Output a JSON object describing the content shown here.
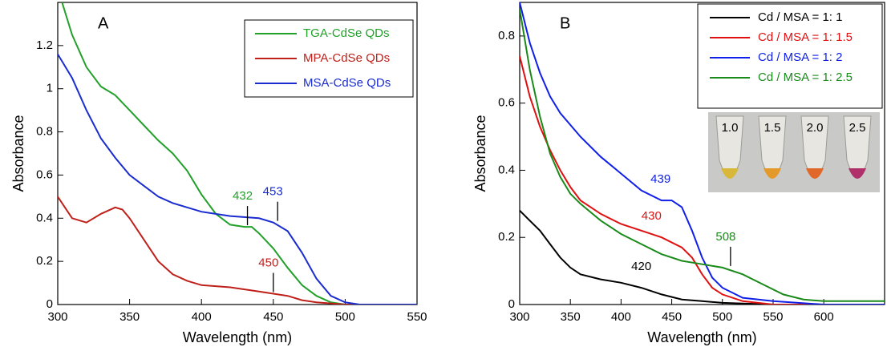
{
  "chart_data": [
    {
      "type": "line",
      "label": "A",
      "x_label": "Wavelength (nm)",
      "y_label": "Absorbance",
      "xlim": [
        300,
        550
      ],
      "ylim": [
        0,
        1.4
      ],
      "xticks": [
        300,
        350,
        400,
        450,
        500,
        550
      ],
      "yticks": [
        0,
        0.2,
        0.4,
        0.6,
        0.8,
        1,
        1.2
      ],
      "legend": "upper right",
      "series": [
        {
          "name": "TGA-CdSe QDs",
          "color": "#22a02a",
          "x": [
            303,
            310,
            320,
            330,
            340,
            350,
            360,
            370,
            380,
            390,
            400,
            410,
            420,
            430,
            435,
            440,
            450,
            460,
            470,
            480,
            490,
            500,
            550
          ],
          "values": [
            1.4,
            1.25,
            1.1,
            1.01,
            0.97,
            0.9,
            0.83,
            0.76,
            0.7,
            0.62,
            0.51,
            0.42,
            0.37,
            0.36,
            0.36,
            0.33,
            0.26,
            0.17,
            0.09,
            0.04,
            0.01,
            0,
            0
          ]
        },
        {
          "name": "MPA-CdSe QDs",
          "color": "#c0201a",
          "x": [
            300,
            310,
            320,
            330,
            340,
            345,
            350,
            360,
            370,
            380,
            390,
            400,
            420,
            440,
            450,
            460,
            470,
            480,
            500,
            550
          ],
          "values": [
            0.5,
            0.4,
            0.38,
            0.42,
            0.45,
            0.44,
            0.4,
            0.3,
            0.2,
            0.14,
            0.11,
            0.09,
            0.08,
            0.06,
            0.05,
            0.04,
            0.02,
            0.01,
            0,
            0
          ]
        },
        {
          "name": "MSA-CdSe QDs",
          "color": "#1a2ccf",
          "x": [
            300,
            310,
            320,
            330,
            340,
            350,
            360,
            370,
            380,
            390,
            400,
            420,
            440,
            450,
            460,
            470,
            480,
            490,
            500,
            510,
            550
          ],
          "values": [
            1.16,
            1.05,
            0.9,
            0.77,
            0.68,
            0.6,
            0.55,
            0.5,
            0.47,
            0.45,
            0.43,
            0.41,
            0.4,
            0.38,
            0.34,
            0.24,
            0.12,
            0.04,
            0.01,
            0,
            0
          ]
        }
      ],
      "annotations": [
        {
          "x": 432,
          "y": 0.36,
          "color": "#22a02a",
          "pointer": true
        },
        {
          "x": 453,
          "y": 0.38,
          "color": "#1a2ccf",
          "pointer": true
        },
        {
          "x": 450,
          "y": 0.05,
          "color": "#c0201a",
          "pointer": true
        }
      ]
    },
    {
      "type": "line",
      "label": "B",
      "x_label": "Wavelength (nm)",
      "y_label": "Absorbance",
      "xlim": [
        300,
        660
      ],
      "ylim": [
        0,
        0.9
      ],
      "xticks": [
        300,
        350,
        400,
        450,
        500,
        550,
        600
      ],
      "yticks": [
        0,
        0.2,
        0.4,
        0.6,
        0.8
      ],
      "legend": "upper right",
      "series": [
        {
          "name": "Cd / MSA = 1: 1",
          "color": "#000000",
          "x": [
            300,
            310,
            320,
            330,
            340,
            350,
            360,
            380,
            400,
            420,
            440,
            460,
            480,
            500,
            550,
            660
          ],
          "values": [
            0.28,
            0.25,
            0.22,
            0.18,
            0.14,
            0.11,
            0.09,
            0.075,
            0.065,
            0.05,
            0.03,
            0.015,
            0.01,
            0.005,
            0,
            0
          ]
        },
        {
          "name": "Cd / MSA = 1: 1.5",
          "color": "#e01010",
          "x": [
            300,
            310,
            320,
            330,
            340,
            350,
            360,
            380,
            400,
            420,
            440,
            460,
            470,
            480,
            490,
            500,
            520,
            550,
            660
          ],
          "values": [
            0.74,
            0.62,
            0.53,
            0.46,
            0.4,
            0.35,
            0.31,
            0.27,
            0.24,
            0.22,
            0.2,
            0.17,
            0.14,
            0.09,
            0.05,
            0.03,
            0.01,
            0,
            0
          ]
        },
        {
          "name": "Cd / MSA = 1: 2",
          "color": "#1020e8",
          "x": [
            300,
            310,
            320,
            330,
            340,
            360,
            380,
            400,
            420,
            440,
            450,
            460,
            470,
            480,
            490,
            500,
            520,
            550,
            600,
            660
          ],
          "values": [
            0.9,
            0.78,
            0.69,
            0.62,
            0.57,
            0.5,
            0.44,
            0.39,
            0.34,
            0.31,
            0.31,
            0.29,
            0.22,
            0.14,
            0.08,
            0.05,
            0.02,
            0.01,
            0,
            0
          ]
        },
        {
          "name": "Cd / MSA = 1: 2.5",
          "color": "#1a8a1a",
          "x": [
            300,
            310,
            320,
            330,
            340,
            350,
            360,
            380,
            400,
            420,
            440,
            460,
            480,
            500,
            520,
            540,
            560,
            580,
            600,
            660
          ],
          "values": [
            0.88,
            0.7,
            0.56,
            0.45,
            0.38,
            0.33,
            0.3,
            0.25,
            0.21,
            0.18,
            0.15,
            0.13,
            0.12,
            0.11,
            0.09,
            0.06,
            0.03,
            0.015,
            0.01,
            0.01
          ]
        }
      ],
      "annotations": [
        {
          "x": 439,
          "y": 0.31,
          "color": "#1020e8",
          "pointer": false
        },
        {
          "x": 430,
          "y": 0.2,
          "color": "#e01010",
          "pointer": false
        },
        {
          "x": 508,
          "y": 0.11,
          "color": "#1a8a1a",
          "pointer": true
        },
        {
          "x": 420,
          "y": 0.05,
          "color": "#000000",
          "pointer": false
        }
      ],
      "inset": {
        "labels": [
          "1.0",
          "1.5",
          "2.0",
          "2.5"
        ]
      }
    }
  ]
}
